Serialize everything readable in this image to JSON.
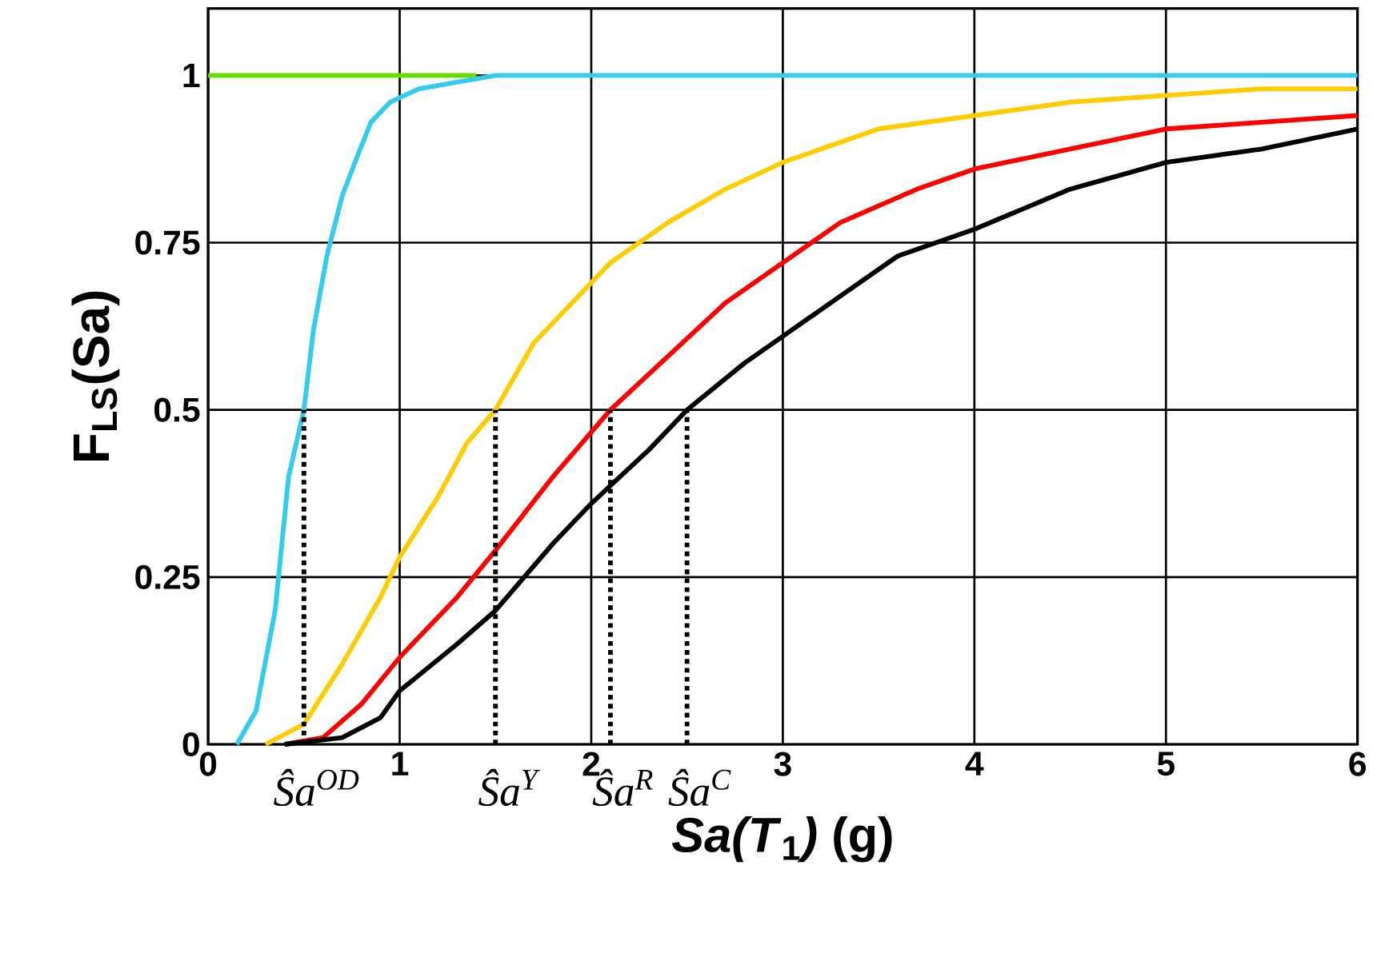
{
  "chart_data": {
    "type": "line",
    "xlabel": "*Sa(T*$_{1}$*)* (g)",
    "ylabel": "F$_{LS}$(Sa)",
    "xlim": [
      0,
      6
    ],
    "ylim": [
      0,
      1.1
    ],
    "xticks": [
      0,
      1,
      2,
      3,
      4,
      5,
      6
    ],
    "yticks": [
      0,
      0.25,
      0.5,
      0.75,
      1
    ],
    "grid": true,
    "series": [
      {
        "color": "#66dd00",
        "x": [
          0,
          1.4
        ],
        "values": [
          1,
          1
        ]
      },
      {
        "color": "#33ccee",
        "x": [
          0.15,
          0.25,
          0.35,
          0.42,
          0.5,
          0.55,
          0.62,
          0.7,
          0.78,
          0.85,
          0.95,
          1.1,
          1.3,
          1.5,
          6
        ],
        "values": [
          0,
          0.05,
          0.2,
          0.4,
          0.5,
          0.62,
          0.73,
          0.82,
          0.88,
          0.93,
          0.96,
          0.98,
          0.99,
          1,
          1
        ]
      },
      {
        "color": "#ffcc00",
        "x": [
          0.3,
          0.5,
          0.7,
          0.9,
          1.0,
          1.2,
          1.35,
          1.5,
          1.7,
          1.9,
          2.1,
          2.4,
          2.7,
          3.0,
          3.5,
          4.0,
          4.5,
          5.0,
          5.5,
          6
        ],
        "values": [
          0,
          0.03,
          0.12,
          0.22,
          0.28,
          0.37,
          0.45,
          0.5,
          0.6,
          0.66,
          0.72,
          0.78,
          0.83,
          0.87,
          0.92,
          0.94,
          0.96,
          0.97,
          0.98,
          0.98
        ]
      },
      {
        "color": "#ff0000",
        "x": [
          0.4,
          0.6,
          0.8,
          1.0,
          1.3,
          1.5,
          1.8,
          2.1,
          2.4,
          2.7,
          3.0,
          3.3,
          3.7,
          4.0,
          4.5,
          5.0,
          5.5,
          6
        ],
        "values": [
          0,
          0.01,
          0.06,
          0.13,
          0.22,
          0.29,
          0.4,
          0.5,
          0.58,
          0.66,
          0.72,
          0.78,
          0.83,
          0.86,
          0.89,
          0.92,
          0.93,
          0.94
        ]
      },
      {
        "color": "#000000",
        "x": [
          0.4,
          0.7,
          0.9,
          1.0,
          1.3,
          1.5,
          1.8,
          2.0,
          2.3,
          2.5,
          2.8,
          3.0,
          3.3,
          3.6,
          4.0,
          4.5,
          5.0,
          5.5,
          6
        ],
        "values": [
          0,
          0.01,
          0.04,
          0.08,
          0.15,
          0.2,
          0.3,
          0.36,
          0.44,
          0.5,
          0.57,
          0.61,
          0.67,
          0.73,
          0.77,
          0.83,
          0.87,
          0.89,
          0.92
        ]
      },
      {
        "color": "#000000",
        "line_style": "dotted",
        "x": [
          0.5,
          0.5
        ],
        "values": [
          0,
          0.5
        ]
      },
      {
        "color": "#000000",
        "line_style": "dotted",
        "x": [
          1.5,
          1.5
        ],
        "values": [
          0,
          0.5
        ]
      },
      {
        "color": "#000000",
        "line_style": "dotted",
        "x": [
          2.1,
          2.1
        ],
        "values": [
          0,
          0.5
        ]
      },
      {
        "color": "#000000",
        "line_style": "dotted",
        "x": [
          2.5,
          2.5
        ],
        "values": [
          0,
          0.5
        ]
      }
    ],
    "annotations": [
      {
        "text": "*Ŝa*$^{OD}$",
        "x": 0.5,
        "y": 0
      },
      {
        "text": "*Ŝa*$^{Y}$",
        "x": 1.5,
        "y": 0
      },
      {
        "text": "*Ŝa*$^{R}$",
        "x": 2.1,
        "y": 0
      },
      {
        "text": "*Ŝa*$^{C}$",
        "x": 2.5,
        "y": 0
      }
    ]
  }
}
